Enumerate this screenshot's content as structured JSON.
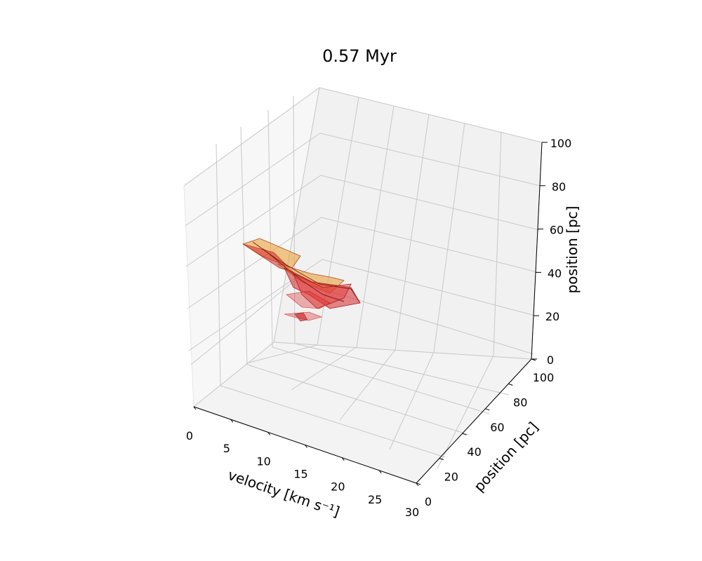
{
  "chart_data": {
    "type": "surface3d",
    "title": "0.57 Myr",
    "xlabel": "velocity [km s⁻¹]",
    "ylabel": "position [pc]",
    "zlabel": "position [pc]",
    "xlim": [
      0,
      30
    ],
    "ylim": [
      0,
      100
    ],
    "zlim": [
      0,
      100
    ],
    "x_ticks": [
      "0",
      "5",
      "10",
      "15",
      "20",
      "25",
      "30"
    ],
    "y_ticks": [
      "0",
      "20",
      "40",
      "60",
      "80",
      "100"
    ],
    "z_ticks": [
      "0",
      "20",
      "40",
      "60",
      "80",
      "100"
    ],
    "grid": true,
    "surface_colors": [
      "#d62728",
      "#e8a33c"
    ],
    "surface_points": [
      {
        "velocity": 2,
        "y": 60,
        "z": 58
      },
      {
        "velocity": 5,
        "y": 62,
        "z": 57
      },
      {
        "velocity": 7,
        "y": 64,
        "z": 56
      },
      {
        "velocity": 9,
        "y": 58,
        "z": 47
      },
      {
        "velocity": 11,
        "y": 54,
        "z": 42
      },
      {
        "velocity": 14,
        "y": 52,
        "z": 38
      },
      {
        "velocity": 16,
        "y": 50,
        "z": 36
      },
      {
        "velocity": 18,
        "y": 46,
        "z": 32
      },
      {
        "velocity": 11,
        "y": 40,
        "z": 24
      },
      {
        "velocity": 13,
        "y": 38,
        "z": 22
      }
    ]
  }
}
